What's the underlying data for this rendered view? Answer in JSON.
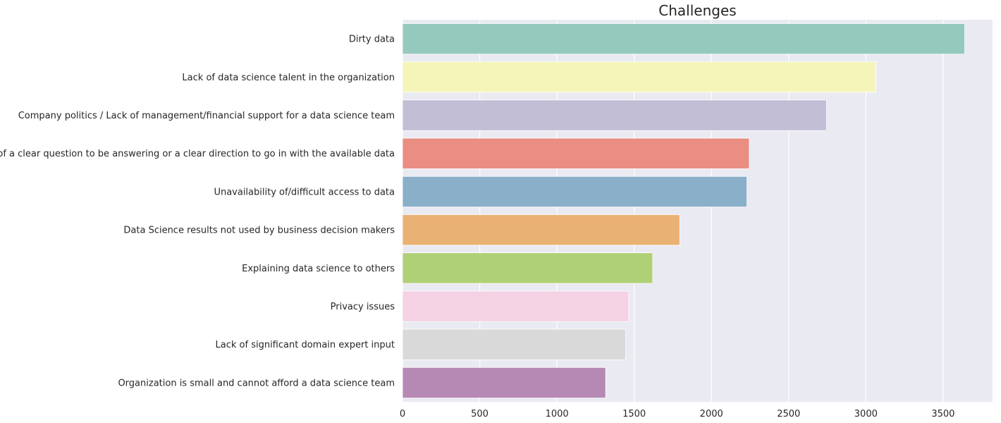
{
  "chart_data": {
    "type": "bar",
    "orientation": "horizontal",
    "title": "Challenges",
    "xlabel": "",
    "ylabel": "",
    "xlim": [
      0,
      3820
    ],
    "x_ticks": [
      0,
      500,
      1000,
      1500,
      2000,
      2500,
      3000,
      3500
    ],
    "grid": "vertical",
    "background": "#EAEAF2",
    "categories": [
      "Dirty data",
      "Lack of data science talent in the organization",
      "Company politics / Lack of management/financial support for a data science team",
      "The lack of a clear question to be answering or a clear direction to go in with the available data",
      "Unavailability of/difficult access to data",
      "Data Science results not used by business decision makers",
      "Explaining data science to others",
      "Privacy issues",
      "Lack of significant domain expert input",
      "Organization is small and cannot afford a data science team"
    ],
    "values": [
      3640,
      3065,
      2745,
      2245,
      2230,
      1795,
      1620,
      1465,
      1445,
      1315
    ],
    "colors": [
      "#96C9BE",
      "#F5F5BA",
      "#C1BED5",
      "#EA8D82",
      "#8AAFC8",
      "#EAB174",
      "#B0D077",
      "#F4D2E3",
      "#D9D9D9",
      "#B688B4"
    ]
  }
}
